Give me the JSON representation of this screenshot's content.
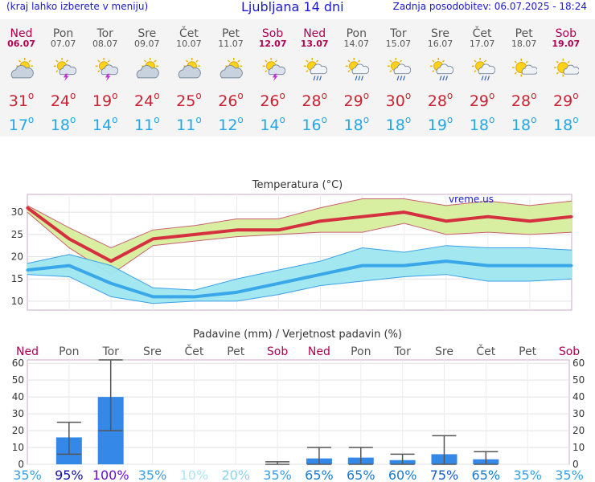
{
  "header": {
    "hint": "(kraj lahko izberete v meniju)",
    "title": "Ljubljana 14 dni",
    "updated": "Zadnja posodobitev: 06.07.2025 - 18:24"
  },
  "colors": {
    "header_text": "#1a1acc",
    "weekend": "#b00050",
    "weekday": "#555555",
    "max_temp": "#cc2233",
    "min_temp": "#22a8e8",
    "max_band": "#d6ee9c",
    "min_band": "#9ee6f0",
    "precip_bar": "#3388e8"
  },
  "days": [
    {
      "name": "Ned",
      "date": "06.07",
      "weekend": true,
      "icon": "partly-cloudy-icon",
      "max": "31",
      "min": "17"
    },
    {
      "name": "Pon",
      "date": "07.07",
      "weekend": false,
      "icon": "sun-thunderstorm-icon",
      "max": "24",
      "min": "18"
    },
    {
      "name": "Tor",
      "date": "08.07",
      "weekend": false,
      "icon": "sun-thunderstorm-icon",
      "max": "19",
      "min": "14"
    },
    {
      "name": "Sre",
      "date": "09.07",
      "weekend": false,
      "icon": "partly-cloudy-icon",
      "max": "24",
      "min": "11"
    },
    {
      "name": "Čet",
      "date": "10.07",
      "weekend": false,
      "icon": "partly-cloudy-icon",
      "max": "25",
      "min": "11"
    },
    {
      "name": "Pet",
      "date": "11.07",
      "weekend": false,
      "icon": "partly-cloudy-icon",
      "max": "26",
      "min": "12"
    },
    {
      "name": "Sob",
      "date": "12.07",
      "weekend": true,
      "icon": "sun-thunderstorm-icon",
      "max": "26",
      "min": "14"
    },
    {
      "name": "Ned",
      "date": "13.07",
      "weekend": true,
      "icon": "sun-rain-icon",
      "max": "28",
      "min": "16"
    },
    {
      "name": "Pon",
      "date": "14.07",
      "weekend": false,
      "icon": "sun-rain-icon",
      "max": "29",
      "min": "18"
    },
    {
      "name": "Tor",
      "date": "15.07",
      "weekend": false,
      "icon": "sun-rain-icon",
      "max": "30",
      "min": "18"
    },
    {
      "name": "Sre",
      "date": "16.07",
      "weekend": false,
      "icon": "sun-rain-icon",
      "max": "28",
      "min": "19"
    },
    {
      "name": "Čet",
      "date": "17.07",
      "weekend": false,
      "icon": "sun-rain-icon",
      "max": "29",
      "min": "18"
    },
    {
      "name": "Pet",
      "date": "18.07",
      "weekend": false,
      "icon": "sun-light-cloud-icon",
      "max": "28",
      "min": "18"
    },
    {
      "name": "Sob",
      "date": "19.07",
      "weekend": true,
      "icon": "sun-light-cloud-icon",
      "max": "29",
      "min": "18"
    }
  ],
  "chart_data": [
    {
      "type": "line",
      "title": "Temperatura (°C)",
      "watermark": "vreme.us",
      "ylim": [
        8,
        34
      ],
      "yticks": [
        10,
        15,
        20,
        25,
        30
      ],
      "grid": true,
      "categories": [
        "06.07",
        "07.07",
        "08.07",
        "09.07",
        "10.07",
        "11.07",
        "12.07",
        "13.07",
        "14.07",
        "15.07",
        "16.07",
        "17.07",
        "18.07",
        "19.07"
      ],
      "series": [
        {
          "role": "max",
          "values": [
            31,
            24,
            19,
            24,
            25,
            26,
            26,
            28,
            29,
            30,
            28,
            29,
            28,
            29
          ],
          "band_low": [
            30,
            22,
            16,
            22.5,
            23.5,
            24.5,
            25,
            25.5,
            25.5,
            27.5,
            25,
            25.5,
            25,
            25.5
          ],
          "band_high": [
            31.5,
            26.5,
            22,
            26,
            27,
            28.5,
            28.5,
            31,
            33,
            33,
            31.5,
            32.5,
            31.5,
            32.5
          ]
        },
        {
          "role": "min",
          "values": [
            17,
            18,
            14,
            11,
            11,
            12,
            14,
            16,
            18,
            18,
            19,
            18,
            18,
            18
          ],
          "band_low": [
            16,
            15.5,
            11,
            9.5,
            10,
            10,
            11.5,
            13.5,
            14.5,
            15.5,
            16,
            14.5,
            14.5,
            15
          ],
          "band_high": [
            18.5,
            20.5,
            18,
            13,
            12.5,
            15,
            17,
            19,
            22,
            21,
            22.5,
            22,
            22,
            21.5
          ]
        }
      ]
    },
    {
      "type": "bar",
      "title": "Padavine (mm) / Verjetnost padavin (%)",
      "ylim": [
        0,
        62
      ],
      "yticks": [
        0,
        10,
        20,
        30,
        40,
        50,
        60
      ],
      "grid": true,
      "categories": [
        "Ned",
        "Pon",
        "Tor",
        "Sre",
        "Čet",
        "Pet",
        "Sob",
        "Ned",
        "Pon",
        "Tor",
        "Sre",
        "Čet",
        "Pet",
        "Sob"
      ],
      "weekend": [
        true,
        false,
        false,
        false,
        false,
        false,
        true,
        true,
        false,
        false,
        false,
        false,
        false,
        true
      ],
      "values": [
        0,
        16,
        40,
        0,
        0,
        0,
        0,
        3.5,
        4,
        2.5,
        6,
        3,
        0,
        0
      ],
      "err_low": [
        0,
        6,
        20,
        0,
        0,
        0,
        0,
        0,
        0,
        0,
        0,
        0,
        0,
        0
      ],
      "err_high": [
        0,
        25,
        62,
        0,
        0,
        0,
        1.5,
        10,
        10,
        6,
        17,
        7.5,
        0,
        0
      ],
      "probability": [
        "35%",
        "95%",
        "100%",
        "35%",
        "10%",
        "20%",
        "35%",
        "65%",
        "65%",
        "60%",
        "75%",
        "65%",
        "35%",
        "35%"
      ],
      "probability_colors": [
        "#3aa0e8",
        "#1010b0",
        "#6a10c8",
        "#3aa0e8",
        "#aee4f4",
        "#88d4f0",
        "#3aa0e8",
        "#1a7acc",
        "#1a7acc",
        "#1a7acc",
        "#1a5ccc",
        "#1a7acc",
        "#3aa0e8",
        "#3aa0e8"
      ]
    }
  ]
}
